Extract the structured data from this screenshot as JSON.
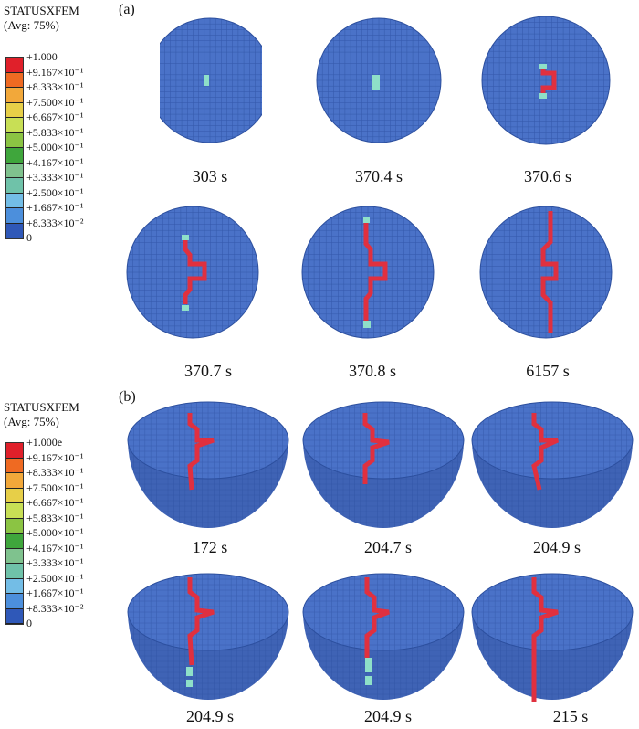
{
  "panel_a": {
    "tag": "(a)",
    "legend": {
      "title": "STATUSXFEM",
      "subtitle": "(Avg: 75%)",
      "labels": [
        "+1.000",
        "+9.167×10⁻¹",
        "+8.333×10⁻¹",
        "+7.500×10⁻¹",
        "+6.667×10⁻¹",
        "+5.833×10⁻¹",
        "+5.000×10⁻¹",
        "+4.167×10⁻¹",
        "+3.333×10⁻¹",
        "+2.500×10⁻¹",
        "+1.667×10⁻¹",
        "+8.333×10⁻²",
        "0"
      ]
    },
    "captions": [
      "303 s",
      "370.4 s",
      "370.6 s",
      "370.7 s",
      "370.8 s",
      "6157 s"
    ]
  },
  "panel_b": {
    "tag": "(b)",
    "legend": {
      "title": "STATUSXFEM",
      "subtitle": "(Avg: 75%)",
      "labels": [
        "+1.000e",
        "+9.167×10⁻¹",
        "+8.333×10⁻¹",
        "+7.500×10⁻¹",
        "+6.667×10⁻¹",
        "+5.833×10⁻¹",
        "+5.000×10⁻¹",
        "+4.167×10⁻¹",
        "+3.333×10⁻¹",
        "+2.500×10⁻¹",
        "+1.667×10⁻¹",
        "+8.333×10⁻²",
        "0"
      ]
    },
    "captions": [
      "172 s",
      "204.7 s",
      "204.9 s",
      "204.9 s",
      "204.9 s",
      "215 s"
    ]
  },
  "colors": {
    "scale": [
      "#e0202a",
      "#ef6a22",
      "#f2a83a",
      "#e7cf48",
      "#c8df55",
      "#8bc443",
      "#3fa63c",
      "#7fc28e",
      "#6fc2a9",
      "#73bde6",
      "#4c8fdc",
      "#2f58b8",
      "#1c3fa8"
    ],
    "mesh": "#4a72c8",
    "mesh_line": "#2c4f9e",
    "crack": "#e0303f",
    "partial": "#8ee0c8"
  }
}
